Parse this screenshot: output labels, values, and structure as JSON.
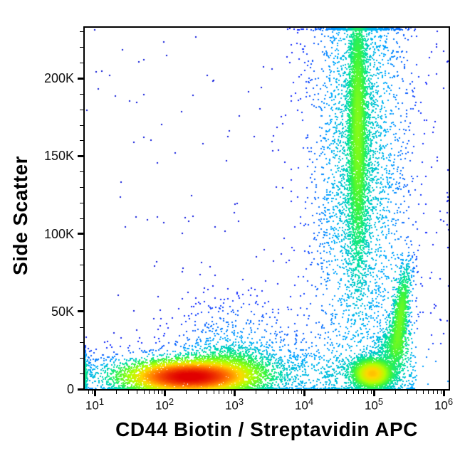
{
  "figure": {
    "kind": "flow-cytometry-pseudocolor-dot-plot",
    "background": "#ffffff",
    "frame_color": "#000000"
  },
  "axes": {
    "x": {
      "label": "CD44 Biotin / Streptavidin APC",
      "scale": "log10",
      "range_log10": [
        0.857,
        6.071
      ],
      "major_ticks": [
        {
          "log": 1,
          "base": "10",
          "exp": "1"
        },
        {
          "log": 2,
          "base": "10",
          "exp": "2"
        },
        {
          "log": 3,
          "base": "10",
          "exp": "3"
        },
        {
          "log": 4,
          "base": "10",
          "exp": "4"
        },
        {
          "log": 5,
          "base": "10",
          "exp": "5"
        },
        {
          "log": 6,
          "base": "10",
          "exp": "6"
        }
      ],
      "minor_ticks_per_decade": [
        2,
        3,
        4,
        5,
        6,
        7,
        8,
        9
      ]
    },
    "y": {
      "label": "Side Scatter",
      "scale": "linear",
      "range": [
        0,
        232500
      ],
      "major_ticks": [
        {
          "value": 0,
          "label": "0"
        },
        {
          "value": 50000,
          "label": "50K"
        },
        {
          "value": 100000,
          "label": "100K"
        },
        {
          "value": 150000,
          "label": "150K"
        },
        {
          "value": 200000,
          "label": "200K"
        }
      ],
      "minor_tick_step": 10000
    }
  },
  "chart_data": {
    "type": "scatter",
    "subtype": "density-dot-plot",
    "title": "",
    "xlabel": "CD44 Biotin / Streptavidin APC",
    "ylabel": "Side Scatter",
    "x_scale": "log10",
    "x_range_log10": [
      0.857,
      6.071
    ],
    "y_range": [
      0,
      232500
    ],
    "grid": false,
    "legend": false,
    "colormap": "jet",
    "dot_size_px": 2,
    "populations": [
      {
        "name": "cd44-dim-low-ssc-main",
        "x_center": 220,
        "ssc_center": 8000,
        "events": 6500,
        "peak_color": "red",
        "A": 100,
        "sample": {
          "type": "gauss",
          "cx": 2.35,
          "cy": 8000,
          "sx": 0.45,
          "sy": 5200
        }
      },
      {
        "name": "cd44-dim-low-ssc-right-shoulder",
        "x_center": 800,
        "ssc_center": 13000,
        "events": 1300,
        "peak_color": "green",
        "A": 7,
        "sample": {
          "type": "gauss",
          "cx": 2.9,
          "cy": 13000,
          "sx": 0.32,
          "sy": 7500
        }
      },
      {
        "name": "cd44-mid-high-ssc-streak-core",
        "x_center": 59000,
        "ssc_center": 168000,
        "events": 4200,
        "peak_color": "green",
        "A": 11,
        "sample": {
          "type": "gauss",
          "cx": 4.77,
          "cy": 168000,
          "sx": 0.07,
          "sy": 46000
        }
      },
      {
        "name": "cd44-mid-high-ssc-streak-halo",
        "x_center": 59000,
        "ssc_center": 150000,
        "events": 2600,
        "peak_color": "blue",
        "A": 2.2,
        "sample": {
          "type": "gauss",
          "cx": 4.77,
          "cy": 150000,
          "sx": 0.3,
          "sy": 68000
        }
      },
      {
        "name": "cd44-bright-low-ssc",
        "x_center": 95000,
        "ssc_center": 10000,
        "events": 3000,
        "peak_color": "yellow",
        "A": 35,
        "sample": {
          "type": "gauss",
          "cx": 4.98,
          "cy": 10000,
          "sx": 0.14,
          "sy": 4600
        }
      },
      {
        "name": "cd44-bright-mid-ssc-diagonal",
        "x_center": 240000,
        "ssc_center": 46000,
        "events": 1300,
        "peak_color": "green",
        "A": 12,
        "sample": {
          "type": "corr",
          "cx": 5.38,
          "cy": 46000,
          "ax": 0.06,
          "ay": 17000,
          "bx": 0.05,
          "by": -4000
        },
        "density": {
          "sx": 0.085,
          "sy": 17000
        }
      },
      {
        "name": "bright-bridge",
        "x_center": 186000,
        "ssc_center": 27000,
        "events": 550,
        "peak_color": "cyan",
        "A": 4.5,
        "sample": {
          "type": "gauss",
          "cx": 5.27,
          "cy": 27000,
          "sx": 0.12,
          "sy": 7000
        }
      },
      {
        "name": "low-ssc-band",
        "x_center": null,
        "ssc_center": 9000,
        "events": 1600,
        "peak_color": "blue",
        "A": 1.6,
        "sample": {
          "type": "bandx",
          "x0": 0.87,
          "x1": 5.6,
          "cy": 9000,
          "sy": 11000
        },
        "density": {
          "cx": 3.23,
          "sx": 4.8,
          "cy": 9000,
          "sy": 11000
        }
      },
      {
        "name": "mid-left-scatter",
        "x_center": 1000,
        "ssc_center": 25000,
        "events": 650,
        "peak_color": "blue",
        "A": 1.4,
        "sample": {
          "type": "gauss",
          "cx": 3.0,
          "cy": 25000,
          "sx": 0.55,
          "sy": 20000
        }
      },
      {
        "name": "streak-column-scatter",
        "x_center": 71000,
        "ssc_center": null,
        "events": 900,
        "peak_color": "blue",
        "A": 1.2,
        "sample": {
          "type": "gaussx_uniformy",
          "cx": 4.85,
          "sx": 0.55,
          "y0": 0,
          "y1": 232500
        },
        "density": {
          "cx": 4.85,
          "sx": 0.55,
          "cy": 116000,
          "sy": 400000
        }
      },
      {
        "name": "sparse-background",
        "x_center": null,
        "ssc_center": null,
        "events": 130,
        "peak_color": "blue",
        "A": 0.8,
        "sample": {
          "type": "uniform",
          "x0": 0.87,
          "x1": 6.05,
          "y0": 1000,
          "y1": 232000
        },
        "density": {
          "cx": 3.46,
          "sx": 6,
          "cy": 116000,
          "sy": 500000
        }
      },
      {
        "name": "left-edge-pileup",
        "x_center": 7,
        "ssc_center": 10000,
        "events": 260,
        "peak_color": "cyan",
        "A": 3.5,
        "sample": {
          "type": "edgeleft",
          "cy": 10000,
          "sy": 7000
        },
        "density": {
          "cx": 0.868,
          "sx": 0.02,
          "cy": 10000,
          "sy": 7000
        }
      }
    ]
  }
}
